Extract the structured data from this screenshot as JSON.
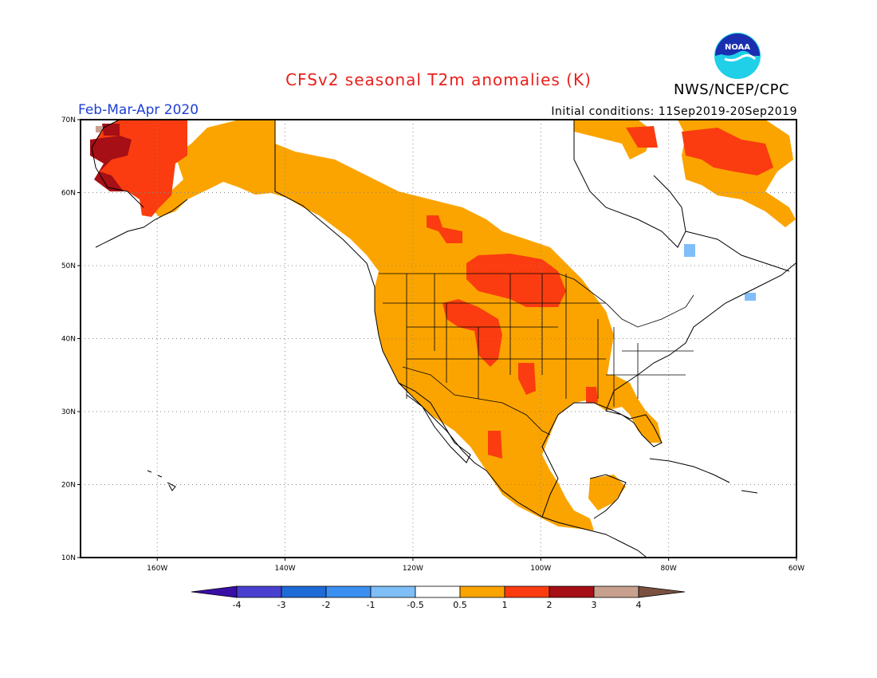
{
  "header": {
    "title": "CFSv2 seasonal T2m anomalies (K)",
    "period": "Feb-Mar-Apr 2020",
    "initial_conditions": "Initial conditions: 11Sep2019-20Sep2019",
    "agency": "NWS/NCEP/CPC",
    "logo_text": "NOAA"
  },
  "colors": {
    "title": "#e8201c",
    "period": "#1f3fd6",
    "anom_05_1": "#fba400",
    "anom_1_2": "#fa3c10",
    "anom_2_3": "#a50f15",
    "anom_3_4": "#c8a08e",
    "anom_neg_05_1": "#7fbef6",
    "land_outline": "#000000",
    "grid": "#888888"
  },
  "axes": {
    "lat_labels": [
      "70N",
      "60N",
      "50N",
      "40N",
      "30N",
      "20N",
      "10N"
    ],
    "lon_labels": [
      "160W",
      "140W",
      "120W",
      "100W",
      "80W",
      "60W"
    ]
  },
  "legend": {
    "labels": [
      "-4",
      "-3",
      "-2",
      "-1",
      "-0.5",
      "0.5",
      "1",
      "2",
      "3",
      "4"
    ],
    "colors": [
      "#3a0fa8",
      "#4a40d0",
      "#1e6ad6",
      "#3b8ff0",
      "#7fbef6",
      "#ffffff",
      "#fba400",
      "#fa3c10",
      "#a50f15",
      "#c8a08e",
      "#7a5040"
    ]
  }
}
